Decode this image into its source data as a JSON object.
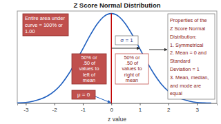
{
  "chart_data": {
    "type": "line",
    "title": "Z Score Normal Distribution",
    "x_label": "z value",
    "x": [
      -3.5,
      -3.25,
      -3,
      -2.75,
      -2.5,
      -2.25,
      -2,
      -1.75,
      -1.5,
      -1.25,
      -1,
      -0.75,
      -0.5,
      -0.25,
      0,
      0.25,
      0.5,
      0.75,
      1,
      1.25,
      1.5,
      1.75,
      2,
      2.25,
      2.5,
      2.75,
      3,
      3.25,
      3.5
    ],
    "values": [
      0.001,
      0.002,
      0.004,
      0.009,
      0.018,
      0.032,
      0.054,
      0.086,
      0.13,
      0.183,
      0.242,
      0.301,
      0.352,
      0.387,
      0.399,
      0.387,
      0.352,
      0.301,
      0.242,
      0.183,
      0.13,
      0.086,
      0.054,
      0.032,
      0.018,
      0.009,
      0.004,
      0.002,
      0.001
    ],
    "color": "#1f5fbf",
    "xlim": [
      -3.3,
      3.7
    ],
    "xticks": [
      -3,
      -2,
      -1,
      0,
      1,
      2,
      3
    ],
    "ylim": [
      0,
      0.41
    ],
    "yticks": [],
    "tick_labels": "x",
    "grid": false,
    "mean": 0,
    "sigma": 1,
    "annotations": [
      {
        "lines": [
          "Entire area under",
          "curve = 100% or",
          "1.00"
        ]
      },
      {
        "lines": [
          "Properties of the",
          "Z Score Normal",
          "Distribution:",
          "1. Symmetrical",
          "2. Mean = 0 and",
          "Standard",
          "Deviation = 1",
          "3. Mean, median,",
          "and mode are",
          "equal"
        ]
      },
      {
        "lines": [
          "σ = 1"
        ]
      },
      {
        "lines": [
          "50% or",
          ".50 of",
          "values to",
          "left of",
          "mean"
        ]
      },
      {
        "lines": [
          "50% or",
          ".50 of",
          "values to",
          "right of",
          "mean"
        ]
      },
      {
        "lines": [
          "μ = 0"
        ]
      }
    ]
  }
}
